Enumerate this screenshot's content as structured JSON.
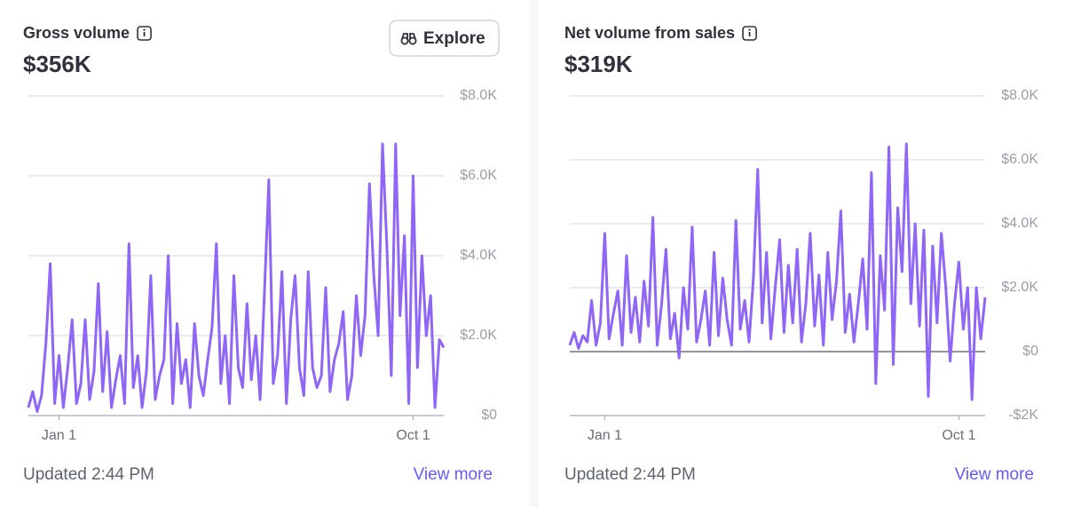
{
  "chart_data": [
    {
      "type": "line",
      "title": "Gross volume",
      "total": "$356K",
      "button": "Explore",
      "footer": "Updated 2:44 PM",
      "link": "View more",
      "color": "#8f66f6",
      "grid": true,
      "categories": [
        null,
        null,
        null,
        null,
        null,
        null,
        null,
        "Jan 1",
        null,
        null,
        null,
        null,
        null,
        null,
        null,
        null,
        null,
        null,
        null,
        null,
        null,
        null,
        null,
        null,
        null,
        null,
        null,
        null,
        null,
        null,
        null,
        null,
        null,
        null,
        null,
        null,
        null,
        null,
        null,
        null,
        null,
        null,
        null,
        null,
        null,
        null,
        null,
        null,
        null,
        null,
        null,
        null,
        null,
        null,
        null,
        null,
        null,
        null,
        null,
        null,
        null,
        null,
        null,
        null,
        null,
        null,
        null,
        null,
        null,
        null,
        null,
        null,
        null,
        null,
        null,
        null,
        null,
        null,
        null,
        null,
        null,
        null,
        null,
        null,
        null,
        null,
        null,
        null,
        "Oct 1",
        null,
        null,
        null,
        null,
        null,
        null,
        null
      ],
      "values": [
        200,
        600,
        100,
        500,
        1800,
        3800,
        300,
        1500,
        200,
        1200,
        2400,
        300,
        800,
        2400,
        400,
        1100,
        3300,
        600,
        2100,
        200,
        900,
        1500,
        300,
        4300,
        700,
        1500,
        200,
        1100,
        3500,
        400,
        1000,
        1400,
        4000,
        300,
        2300,
        800,
        1400,
        200,
        2300,
        1000,
        500,
        1400,
        2200,
        4300,
        800,
        2000,
        300,
        3500,
        1200,
        700,
        2800,
        900,
        2000,
        400,
        3100,
        5900,
        800,
        1500,
        3600,
        300,
        2400,
        3500,
        1200,
        500,
        3600,
        1200,
        700,
        1000,
        3200,
        600,
        1400,
        1800,
        2600,
        400,
        1000,
        3000,
        1500,
        2500,
        5800,
        3500,
        2000,
        6800,
        4200,
        1000,
        6800,
        2500,
        4500,
        300,
        6000,
        1200,
        4000,
        2000,
        3000,
        200,
        1900,
        1700
      ],
      "ylim": [
        0,
        8000
      ],
      "yticks": [
        {
          "value": 0,
          "label": "$0"
        },
        {
          "value": 2000,
          "label": "$2.0K"
        },
        {
          "value": 4000,
          "label": "$4.0K"
        },
        {
          "value": 6000,
          "label": "$6.0K"
        },
        {
          "value": 8000,
          "label": "$8.0K"
        }
      ]
    },
    {
      "type": "line",
      "title": "Net volume from sales",
      "total": "$319K",
      "footer": "Updated 2:44 PM",
      "link": "View more",
      "color": "#8f66f6",
      "grid": true,
      "categories": [
        null,
        null,
        null,
        null,
        null,
        null,
        null,
        null,
        "Jan 1",
        null,
        null,
        null,
        null,
        null,
        null,
        null,
        null,
        null,
        null,
        null,
        null,
        null,
        null,
        null,
        null,
        null,
        null,
        null,
        null,
        null,
        null,
        null,
        null,
        null,
        null,
        null,
        null,
        null,
        null,
        null,
        null,
        null,
        null,
        null,
        null,
        null,
        null,
        null,
        null,
        null,
        null,
        null,
        null,
        null,
        null,
        null,
        null,
        null,
        null,
        null,
        null,
        null,
        null,
        null,
        null,
        null,
        null,
        null,
        null,
        null,
        null,
        null,
        null,
        null,
        null,
        null,
        null,
        null,
        null,
        null,
        null,
        null,
        null,
        null,
        null,
        null,
        null,
        null,
        null,
        "Oct 1",
        null,
        null,
        null,
        null,
        null,
        null
      ],
      "values": [
        200,
        600,
        100,
        500,
        300,
        1600,
        200,
        900,
        3700,
        400,
        1200,
        1900,
        200,
        3000,
        600,
        1700,
        300,
        2200,
        800,
        4200,
        200,
        1500,
        3200,
        400,
        1200,
        -200,
        2000,
        700,
        3900,
        300,
        1000,
        1900,
        200,
        3100,
        500,
        2300,
        1000,
        200,
        4100,
        700,
        1600,
        300,
        2300,
        5700,
        900,
        3100,
        400,
        2000,
        3500,
        600,
        2700,
        900,
        3200,
        300,
        1500,
        3700,
        800,
        2400,
        200,
        3100,
        1000,
        2200,
        4400,
        600,
        1800,
        300,
        1500,
        2900,
        700,
        5600,
        -1000,
        3000,
        1300,
        6400,
        -400,
        4500,
        2500,
        6500,
        1500,
        4000,
        800,
        3800,
        -1400,
        3300,
        900,
        3700,
        2000,
        -300,
        1500,
        2800,
        700,
        2000,
        -1500,
        2000,
        400,
        1700
      ],
      "ylim": [
        -2000,
        8000
      ],
      "yticks": [
        {
          "value": -2000,
          "label": "-$2K"
        },
        {
          "value": 0,
          "label": "$0"
        },
        {
          "value": 2000,
          "label": "$2.0K"
        },
        {
          "value": 4000,
          "label": "$4.0K"
        },
        {
          "value": 6000,
          "label": "$6.0K"
        },
        {
          "value": 8000,
          "label": "$8.0K"
        }
      ]
    }
  ]
}
